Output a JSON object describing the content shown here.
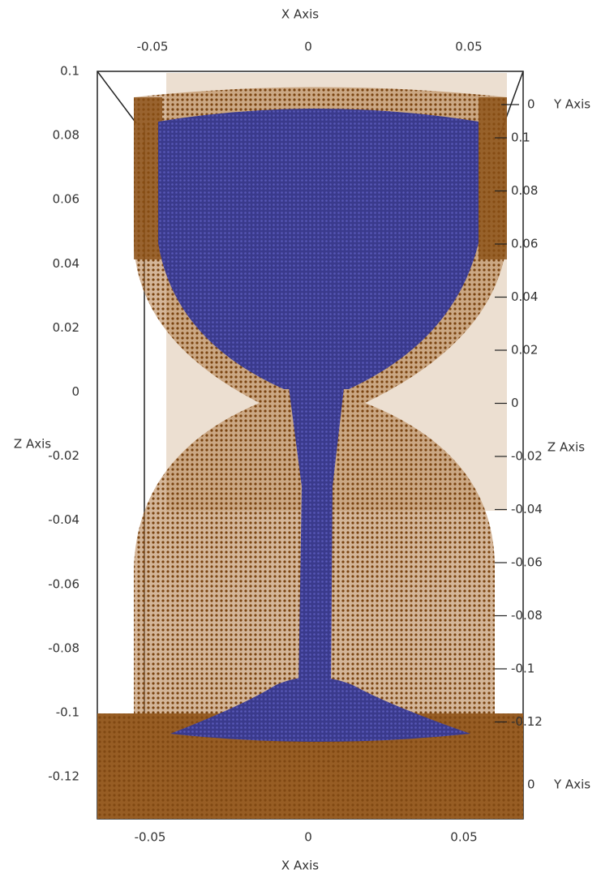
{
  "top_x_axis": {
    "title": "X Axis",
    "ticks": [
      "-0.05",
      "0",
      "0.05"
    ]
  },
  "bottom_x_axis": {
    "title": "X Axis",
    "ticks": [
      "-0.05",
      "0",
      "0.05"
    ]
  },
  "left_z_axis": {
    "title": "Z Axis",
    "ticks": [
      "0.1",
      "0.08",
      "0.06",
      "0.04",
      "0.02",
      "0",
      "-0.02",
      "-0.04",
      "-0.06",
      "-0.08",
      "-0.1",
      "-0.12"
    ]
  },
  "right_z_axis": {
    "title": "Z Axis"
  },
  "right_y_axis_top": {
    "title": "Y Axis",
    "tick": "0"
  },
  "right_y_axis_bottom": {
    "title": "Y Axis",
    "tick": "0"
  },
  "right_y_axis": {
    "ticks": [
      "0.1",
      "0.08",
      "0.06",
      "0.04",
      "0.02",
      "0",
      "-0.02",
      "-0.04",
      "-0.06",
      "-0.08",
      "-0.1",
      "-0.12"
    ]
  }
}
